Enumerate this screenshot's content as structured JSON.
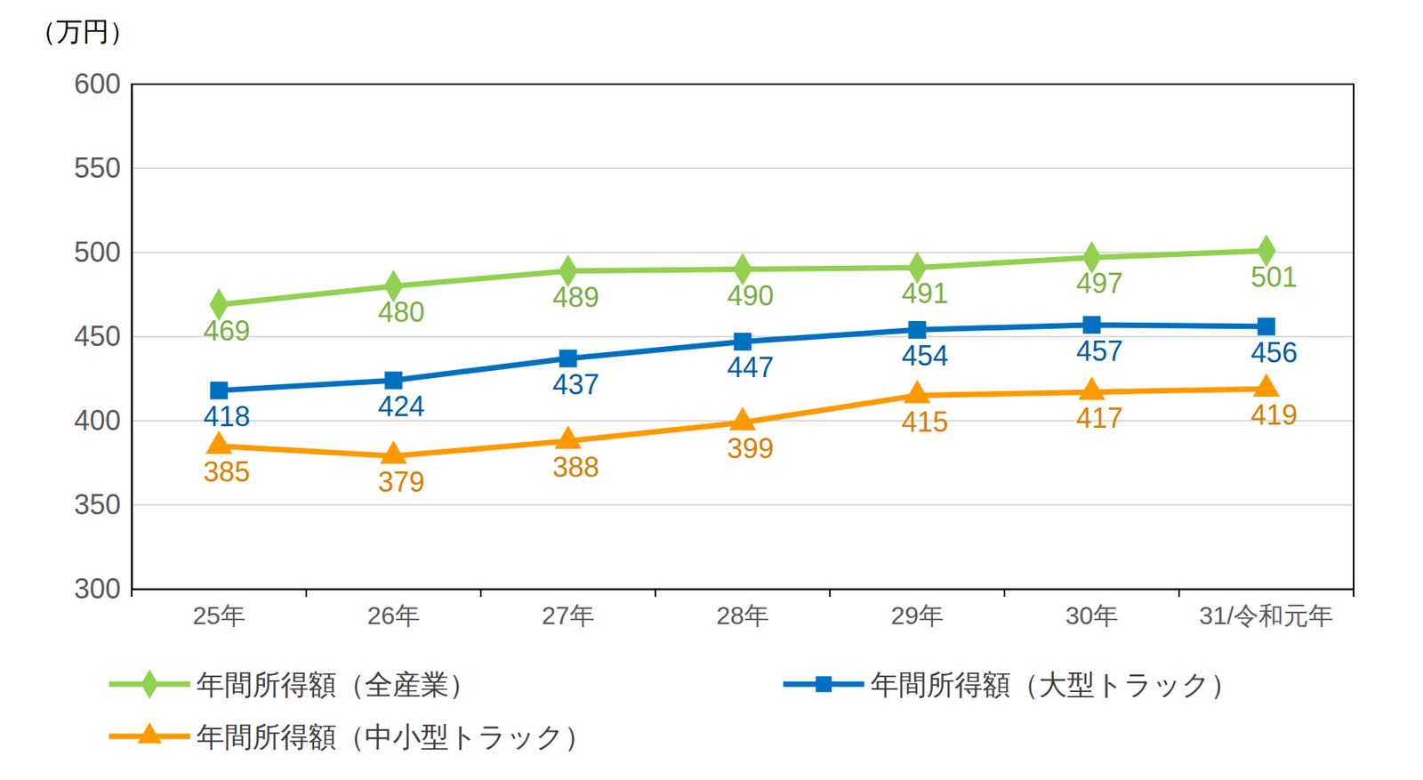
{
  "chart_data": {
    "type": "line",
    "y_label": "（万円）",
    "categories": [
      "25年",
      "26年",
      "27年",
      "28年",
      "29年",
      "30年",
      "31/令和元年"
    ],
    "series": [
      {
        "name": "年間所得額（全産業）",
        "color": "#92d050",
        "marker": "diamond",
        "values": [
          469,
          480,
          489,
          490,
          491,
          497,
          501
        ]
      },
      {
        "name": "年間所得額（大型トラック）",
        "color": "#0070c0",
        "marker": "square",
        "values": [
          418,
          424,
          437,
          447,
          454,
          457,
          456
        ]
      },
      {
        "name": "年間所得額（中小型トラック）",
        "color": "#ff9900",
        "marker": "triangle",
        "values": [
          385,
          379,
          388,
          399,
          415,
          417,
          419
        ]
      }
    ],
    "ylim": [
      300,
      600
    ],
    "yticks": [
      300,
      350,
      400,
      450,
      500,
      550,
      600
    ],
    "grid": true,
    "data_labels": true,
    "legend": "bottom"
  }
}
